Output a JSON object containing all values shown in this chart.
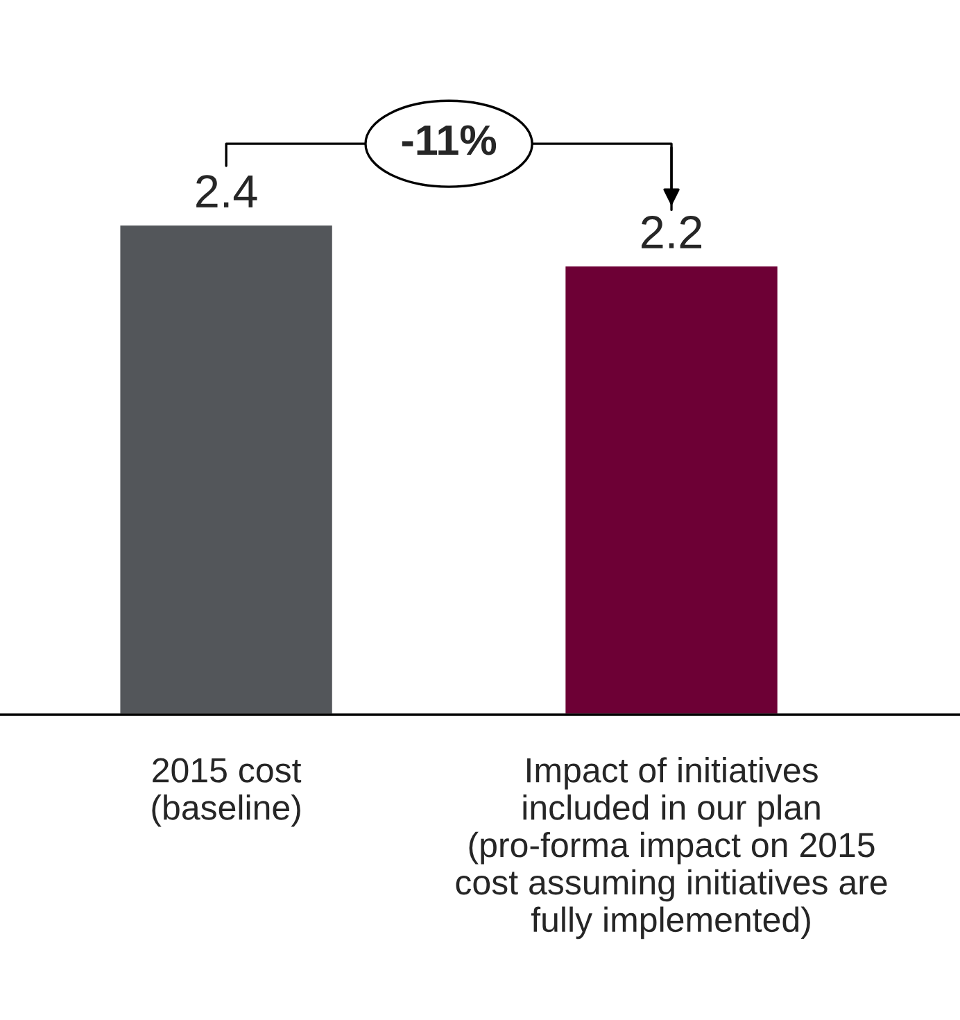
{
  "chart_data": {
    "type": "bar",
    "categories": [
      "2015 cost\n(baseline)",
      "Impact of initiatives\nincluded in our plan\n(pro-forma impact on 2015\ncost assuming initiatives are\nfully implemented)"
    ],
    "values": [
      2.4,
      2.2
    ],
    "colors": [
      "#53565a",
      "#6d0035"
    ],
    "data_labels": true,
    "annotations": [
      "-11%"
    ],
    "grid": false,
    "legend": false
  }
}
